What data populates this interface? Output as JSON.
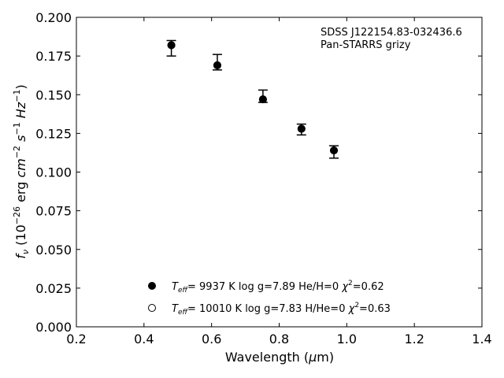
{
  "chart_data": {
    "type": "scatter",
    "xlabel": "Wavelength (μm)",
    "ylabel": "f_ν (10^-26 erg cm^-2 s^-1 Hz^-1)",
    "xlim": [
      0.2,
      1.4
    ],
    "ylim": [
      0.0,
      0.2
    ],
    "xticks": [
      "0.2",
      "0.4",
      "0.6",
      "0.8",
      "1.0",
      "1.2",
      "1.4"
    ],
    "yticks": [
      "0.000",
      "0.025",
      "0.050",
      "0.075",
      "0.100",
      "0.125",
      "0.150",
      "0.175",
      "0.200"
    ],
    "grid": false,
    "annotation": [
      "SDSS J122154.83-032436.6",
      "Pan-STARRS grizy"
    ],
    "series": [
      {
        "marker": "filled-circle",
        "points": [
          {
            "x": 0.481,
            "y": 0.182,
            "err_lo": 0.175,
            "err_hi": 0.185
          },
          {
            "x": 0.617,
            "y": 0.169,
            "err_lo": 0.166,
            "err_hi": 0.176
          },
          {
            "x": 0.752,
            "y": 0.147,
            "err_lo": 0.145,
            "err_hi": 0.153
          },
          {
            "x": 0.866,
            "y": 0.128,
            "err_lo": 0.124,
            "err_hi": 0.131
          },
          {
            "x": 0.962,
            "y": 0.114,
            "err_lo": 0.109,
            "err_hi": 0.117
          }
        ]
      },
      {
        "marker": "open-circle",
        "points": [
          {
            "x": 0.481,
            "y": 0.182
          },
          {
            "x": 0.617,
            "y": 0.169
          },
          {
            "x": 0.752,
            "y": 0.147
          },
          {
            "x": 0.866,
            "y": 0.128
          },
          {
            "x": 0.962,
            "y": 0.114
          }
        ]
      }
    ],
    "legend": {
      "placement": "lower-center",
      "entries": [
        {
          "marker": "filled-circle",
          "teff": "9937 K",
          "logg": "log g=7.89",
          "comp": "He/H=0",
          "chi2": "=0.62"
        },
        {
          "marker": "open-circle",
          "teff": "10010 K",
          "logg": "log g=7.83",
          "comp": "H/He=0",
          "chi2": "=0.63"
        }
      ]
    }
  }
}
